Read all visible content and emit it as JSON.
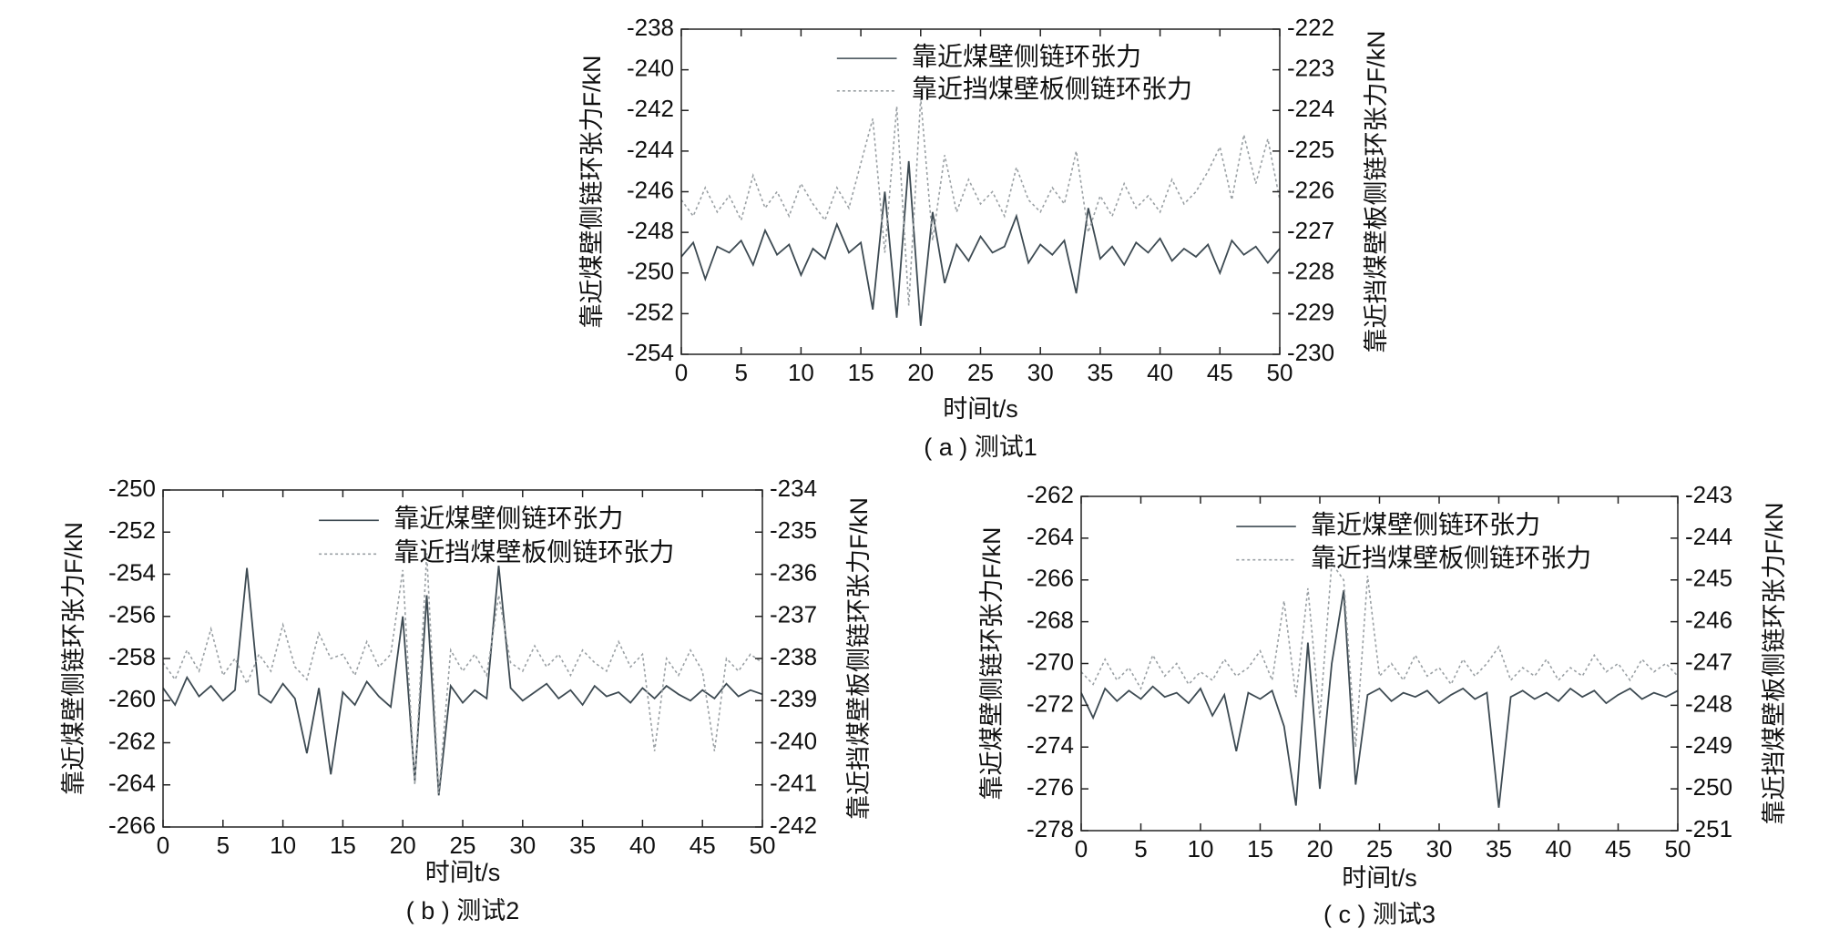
{
  "chart_data": [
    {
      "type": "line",
      "caption": "( a ) 测试1",
      "xlabel": "时间t/s",
      "ylabel": "靠近煤壁侧链环张力F/kN",
      "y2label": "靠近挡煤壁板侧链环张力F/kN",
      "xlim": [
        0,
        50
      ],
      "xticks": [
        0,
        5,
        10,
        15,
        20,
        25,
        30,
        35,
        40,
        45,
        50
      ],
      "ylim": [
        -254,
        -238
      ],
      "yticks": [
        -254,
        -252,
        -250,
        -248,
        -246,
        -244,
        -242,
        -240,
        -238
      ],
      "y2lim": [
        -230,
        -222
      ],
      "y2ticks": [
        -230,
        -229,
        -228,
        -227,
        -226,
        -225,
        -224,
        -223,
        -222
      ],
      "legend": "upper center",
      "x": [
        0,
        1,
        2,
        3,
        4,
        5,
        6,
        7,
        8,
        9,
        10,
        11,
        12,
        13,
        14,
        15,
        16,
        17,
        18,
        19,
        20,
        21,
        22,
        23,
        24,
        25,
        26,
        27,
        28,
        29,
        30,
        31,
        32,
        33,
        34,
        35,
        36,
        37,
        38,
        39,
        40,
        41,
        42,
        43,
        44,
        45,
        46,
        47,
        48,
        49,
        50
      ],
      "series": [
        {
          "name": "靠近煤壁侧链环张力",
          "color": "#3d4a52",
          "style": "solid",
          "axis": "y",
          "values": [
            -249.2,
            -248.5,
            -250.3,
            -248.7,
            -249.0,
            -248.4,
            -249.6,
            -247.9,
            -249.1,
            -248.6,
            -250.1,
            -248.8,
            -249.3,
            -247.6,
            -249.0,
            -248.5,
            -251.8,
            -246.0,
            -252.2,
            -244.5,
            -252.6,
            -247.0,
            -250.5,
            -248.6,
            -249.4,
            -248.2,
            -249.0,
            -248.7,
            -247.2,
            -249.5,
            -248.6,
            -249.1,
            -248.4,
            -251.0,
            -246.8,
            -249.3,
            -248.7,
            -249.6,
            -248.5,
            -249.0,
            -248.3,
            -249.4,
            -248.8,
            -249.2,
            -248.6,
            -250.0,
            -248.4,
            -249.1,
            -248.7,
            -249.5,
            -248.8
          ]
        },
        {
          "name": "靠近挡煤壁板侧链环张力",
          "color": "#9aa0a4",
          "style": "dotted",
          "axis": "y2",
          "values": [
            -226.2,
            -226.6,
            -225.9,
            -226.5,
            -226.1,
            -226.7,
            -225.6,
            -226.4,
            -226.0,
            -226.6,
            -225.8,
            -226.3,
            -226.7,
            -225.9,
            -226.4,
            -225.3,
            -224.2,
            -227.5,
            -223.9,
            -228.8,
            -223.7,
            -227.2,
            -225.1,
            -226.5,
            -225.7,
            -226.3,
            -226.0,
            -226.6,
            -225.4,
            -226.2,
            -226.5,
            -225.9,
            -226.3,
            -225.0,
            -227.0,
            -226.1,
            -226.6,
            -225.8,
            -226.4,
            -226.1,
            -226.5,
            -225.7,
            -226.3,
            -226.0,
            -225.5,
            -224.9,
            -226.2,
            -224.6,
            -225.8,
            -224.7,
            -226.2
          ]
        }
      ]
    },
    {
      "type": "line",
      "caption": "( b ) 测试2",
      "xlabel": "时间t/s",
      "ylabel": "靠近煤壁侧链环张力F/kN",
      "y2label": "靠近挡煤壁板侧链环张力F/kN",
      "xlim": [
        0,
        50
      ],
      "xticks": [
        0,
        5,
        10,
        15,
        20,
        25,
        30,
        35,
        40,
        45,
        50
      ],
      "ylim": [
        -266,
        -250
      ],
      "yticks": [
        -266,
        -264,
        -262,
        -260,
        -258,
        -256,
        -254,
        -252,
        -250
      ],
      "y2lim": [
        -242,
        -234
      ],
      "y2ticks": [
        -242,
        -241,
        -240,
        -239,
        -238,
        -237,
        -236,
        -235,
        -234
      ],
      "legend": "upper center",
      "x": [
        0,
        1,
        2,
        3,
        4,
        5,
        6,
        7,
        8,
        9,
        10,
        11,
        12,
        13,
        14,
        15,
        16,
        17,
        18,
        19,
        20,
        21,
        22,
        23,
        24,
        25,
        26,
        27,
        28,
        29,
        30,
        31,
        32,
        33,
        34,
        35,
        36,
        37,
        38,
        39,
        40,
        41,
        42,
        43,
        44,
        45,
        46,
        47,
        48,
        49,
        50
      ],
      "series": [
        {
          "name": "靠近煤壁侧链环张力",
          "color": "#3d4a52",
          "style": "solid",
          "axis": "y",
          "values": [
            -259.4,
            -260.2,
            -258.9,
            -259.8,
            -259.3,
            -260.0,
            -259.5,
            -253.7,
            -259.7,
            -260.1,
            -259.2,
            -259.9,
            -262.5,
            -259.4,
            -263.5,
            -259.6,
            -260.2,
            -259.1,
            -259.8,
            -260.3,
            -256.0,
            -263.8,
            -255.0,
            -264.5,
            -259.3,
            -260.1,
            -259.5,
            -259.9,
            -253.6,
            -259.4,
            -260.0,
            -259.6,
            -259.2,
            -259.9,
            -259.5,
            -260.2,
            -259.3,
            -259.8,
            -259.6,
            -260.1,
            -259.4,
            -259.9,
            -259.3,
            -259.7,
            -260.0,
            -259.5,
            -259.9,
            -259.2,
            -259.8,
            -259.5,
            -259.7
          ]
        },
        {
          "name": "靠近挡煤壁板侧链环张力",
          "color": "#9aa0a4",
          "style": "dotted",
          "axis": "y2",
          "values": [
            -238.1,
            -238.5,
            -237.8,
            -238.3,
            -237.3,
            -238.4,
            -238.0,
            -238.6,
            -237.9,
            -238.3,
            -237.2,
            -238.2,
            -238.5,
            -237.4,
            -238.0,
            -237.9,
            -238.4,
            -237.6,
            -238.2,
            -237.9,
            -235.9,
            -241.0,
            -235.5,
            -241.2,
            -237.8,
            -238.3,
            -237.9,
            -238.4,
            -236.5,
            -238.1,
            -238.3,
            -237.7,
            -238.2,
            -237.9,
            -238.4,
            -237.8,
            -238.1,
            -238.3,
            -237.6,
            -238.2,
            -237.9,
            -240.2,
            -238.0,
            -238.4,
            -237.8,
            -238.3,
            -240.2,
            -238.0,
            -238.3,
            -237.9,
            -238.1
          ]
        }
      ]
    },
    {
      "type": "line",
      "caption": "( c ) 测试3",
      "xlabel": "时间t/s",
      "ylabel": "靠近煤壁侧链环张力F/kN",
      "y2label": "靠近挡煤壁板侧链环张力F/kN",
      "xlim": [
        0,
        50
      ],
      "xticks": [
        0,
        5,
        10,
        15,
        20,
        25,
        30,
        35,
        40,
        45,
        50
      ],
      "ylim": [
        -278,
        -262
      ],
      "yticks": [
        -278,
        -276,
        -274,
        -272,
        -270,
        -268,
        -266,
        -264,
        -262
      ],
      "y2lim": [
        -251,
        -243
      ],
      "y2ticks": [
        -251,
        -250,
        -249,
        -248,
        -247,
        -246,
        -245,
        -244,
        -243
      ],
      "legend": "upper center",
      "x": [
        0,
        1,
        2,
        3,
        4,
        5,
        6,
        7,
        8,
        9,
        10,
        11,
        12,
        13,
        14,
        15,
        16,
        17,
        18,
        19,
        20,
        21,
        22,
        23,
        24,
        25,
        26,
        27,
        28,
        29,
        30,
        31,
        32,
        33,
        34,
        35,
        36,
        37,
        38,
        39,
        40,
        41,
        42,
        43,
        44,
        45,
        46,
        47,
        48,
        49,
        50
      ],
      "series": [
        {
          "name": "靠近煤壁侧链环张力",
          "color": "#3d4a52",
          "style": "solid",
          "axis": "y",
          "values": [
            -271.4,
            -272.6,
            -271.2,
            -271.8,
            -271.3,
            -271.7,
            -271.1,
            -271.6,
            -271.4,
            -271.9,
            -271.2,
            -272.5,
            -271.5,
            -274.2,
            -271.4,
            -271.7,
            -271.3,
            -273.0,
            -276.8,
            -269.0,
            -276.0,
            -270.0,
            -266.5,
            -275.8,
            -271.5,
            -271.2,
            -271.8,
            -271.4,
            -271.6,
            -271.3,
            -271.9,
            -271.5,
            -271.2,
            -271.7,
            -271.4,
            -276.9,
            -271.6,
            -271.3,
            -271.7,
            -271.4,
            -271.8,
            -271.2,
            -271.6,
            -271.3,
            -271.9,
            -271.5,
            -271.2,
            -271.7,
            -271.4,
            -271.6,
            -271.3
          ]
        },
        {
          "name": "靠近挡煤壁板侧链环张力",
          "color": "#9aa0a4",
          "style": "dotted",
          "axis": "y2",
          "values": [
            -247.2,
            -247.5,
            -246.9,
            -247.4,
            -247.1,
            -247.6,
            -246.8,
            -247.3,
            -247.0,
            -247.5,
            -247.2,
            -247.4,
            -246.9,
            -247.3,
            -247.1,
            -246.7,
            -247.4,
            -245.5,
            -247.8,
            -245.2,
            -248.3,
            -244.6,
            -245.0,
            -249.0,
            -244.9,
            -247.3,
            -247.0,
            -247.4,
            -246.8,
            -247.3,
            -247.1,
            -247.5,
            -246.9,
            -247.3,
            -247.0,
            -246.6,
            -247.4,
            -247.1,
            -247.3,
            -246.9,
            -247.4,
            -247.1,
            -247.3,
            -246.8,
            -247.2,
            -247.0,
            -247.4,
            -246.9,
            -247.2,
            -247.0,
            -247.3
          ]
        }
      ]
    }
  ]
}
